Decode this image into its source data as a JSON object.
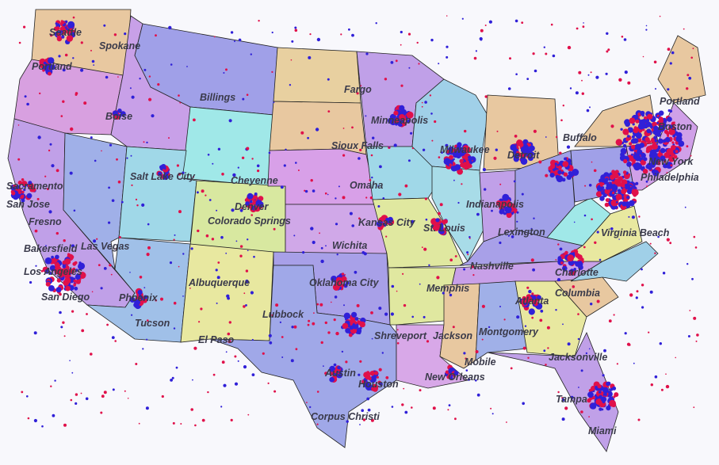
{
  "cities": [
    "Seattle",
    "Spokane",
    "Portland",
    "Boise",
    "Billings",
    "Fargo",
    "Minneapolis",
    "Portland",
    "Boston",
    "Buffalo",
    "Detroit",
    "Milwaukee",
    "Sioux Falls",
    "Salt Lake City",
    "Cheyenne",
    "Sacramento",
    "San Jose",
    "Fresno",
    "Denver",
    "Colorado Springs",
    "Omaha",
    "Kansas City",
    "St. Louis",
    "Indianapolis",
    "Lexington",
    "Las Vegas",
    "Bakersfield",
    "Los Angeles",
    "San Diego",
    "Phoenix",
    "Tucson",
    "Albuquerque",
    "El Paso",
    "Lubbock",
    "Oklahoma City",
    "Wichita",
    "Memphis",
    "Nashville",
    "Virginia Beach",
    "New York",
    "Philadelphia",
    "Charlotte",
    "Columbia",
    "Atlanta",
    "Shreveport",
    "Jackson",
    "Montgomery",
    "Mobile",
    "New Orleans",
    "Austin",
    "Houston",
    "Corpus Christi",
    "Jacksonville",
    "Tampa",
    "Miami"
  ]
}
